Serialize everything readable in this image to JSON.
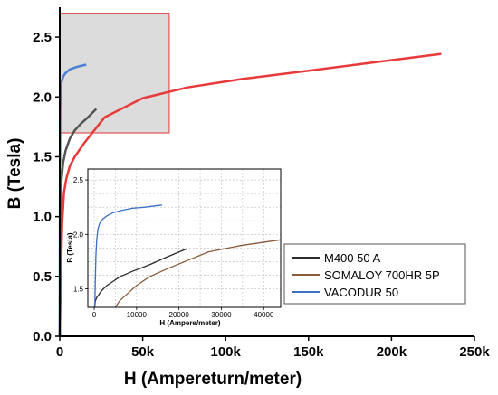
{
  "chart_data": [
    {
      "type": "line",
      "title": "",
      "xlabel": "H (Ampereturn/meter)",
      "ylabel": "B (Tesla)",
      "xlim": [
        0,
        250000
      ],
      "ylim": [
        0,
        2.75
      ],
      "x_ticks": [
        0,
        50000,
        100000,
        150000,
        200000,
        250000
      ],
      "x_tick_labels": [
        "0",
        "50k",
        "100k",
        "150k",
        "200k",
        "250k"
      ],
      "y_ticks": [
        0.0,
        0.5,
        1.0,
        1.5,
        2.0,
        2.5
      ],
      "y_tick_labels": [
        "0.0",
        "0.5",
        "1.0",
        "1.5",
        "2.0",
        "2.5"
      ],
      "grid": false,
      "highlight_region": {
        "x": [
          0,
          66000
        ],
        "y": [
          1.7,
          2.7
        ],
        "fill": "#dcdcdc",
        "stroke": "#e05555"
      },
      "series": [
        {
          "color": "#e83a3a",
          "x": [
            0,
            500,
            1000,
            1500,
            2500,
            4000,
            6000,
            9000,
            15000,
            27000,
            50000,
            77000,
            110000,
            150000,
            190000,
            230000
          ],
          "y": [
            0,
            0.35,
            0.7,
            0.95,
            1.2,
            1.32,
            1.42,
            1.5,
            1.62,
            1.83,
            1.99,
            2.08,
            2.15,
            2.22,
            2.29,
            2.36
          ]
        },
        {
          "color": "#555555",
          "x": [
            0,
            200,
            500,
            1000,
            2000,
            3500,
            6000,
            9000,
            13000,
            17000,
            22000
          ],
          "y": [
            0,
            0.6,
            1.0,
            1.3,
            1.45,
            1.55,
            1.65,
            1.72,
            1.78,
            1.83,
            1.9
          ]
        },
        {
          "color": "#4a7fd4",
          "x": [
            0,
            50,
            150,
            300,
            600,
            1000,
            2000,
            3500,
            6000,
            10000,
            16000
          ],
          "y": [
            0,
            0.8,
            1.5,
            1.9,
            2.05,
            2.12,
            2.17,
            2.2,
            2.23,
            2.25,
            2.27
          ]
        }
      ]
    },
    {
      "type": "line",
      "title": "",
      "xlabel": "H (Ampere/meter)",
      "ylabel": "B (Tesla)",
      "xlim": [
        -1500,
        44000
      ],
      "ylim": [
        1.33,
        2.6
      ],
      "x_ticks": [
        0,
        10000,
        20000,
        30000,
        40000
      ],
      "x_tick_labels": [
        "0",
        "10000",
        "20000",
        "30000",
        "40000"
      ],
      "y_ticks": [
        1.5,
        2.0,
        2.5
      ],
      "y_tick_labels": [
        "1.5",
        "2.0",
        "2.5"
      ],
      "grid": true,
      "series": [
        {
          "name": "M400 50 A",
          "color": "#2b2b2b",
          "x": [
            80,
            300,
            600,
            1000,
            1500,
            2200,
            3000,
            4500,
            6000,
            9000,
            13000,
            17000,
            22000
          ],
          "y": [
            1.33,
            1.39,
            1.42,
            1.44,
            1.47,
            1.5,
            1.53,
            1.57,
            1.61,
            1.66,
            1.72,
            1.79,
            1.87
          ]
        },
        {
          "name": "SOMALOY 700HR 5P",
          "color": "#8b5a3a",
          "x": [
            5000,
            6000,
            8000,
            10000,
            13000,
            17000,
            22000,
            27000,
            35000,
            44000
          ],
          "y": [
            1.33,
            1.39,
            1.46,
            1.53,
            1.61,
            1.68,
            1.76,
            1.84,
            1.9,
            1.95
          ]
        },
        {
          "name": "VACODUR 50",
          "color": "#3a6fc4",
          "x": [
            150,
            250,
            400,
            600,
            900,
            1300,
            2000,
            3000,
            4500,
            6500,
            9000,
            12000,
            16000
          ],
          "y": [
            1.33,
            1.55,
            1.8,
            1.95,
            2.05,
            2.1,
            2.14,
            2.17,
            2.2,
            2.22,
            2.24,
            2.25,
            2.27
          ]
        }
      ],
      "legend": "right"
    }
  ]
}
